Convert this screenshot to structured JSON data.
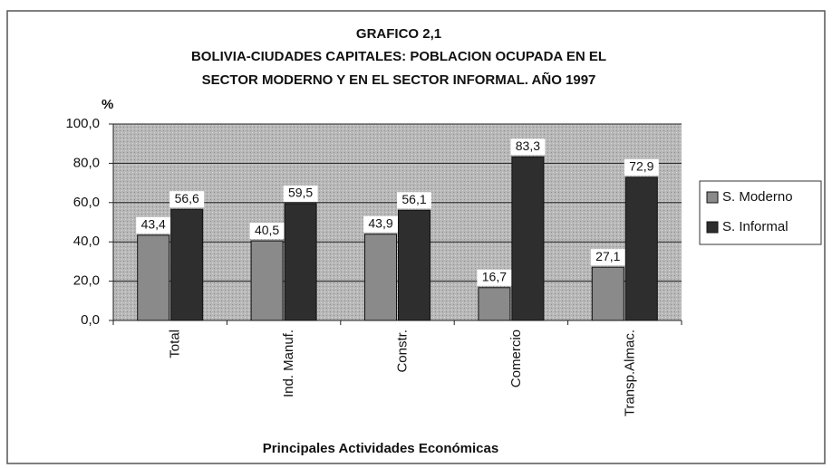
{
  "chart_data": {
    "type": "bar",
    "title": [
      "GRAFICO 2,1",
      "BOLIVIA-CIUDADES CAPITALES: POBLACION OCUPADA EN EL",
      "SECTOR MODERNO Y EN EL SECTOR INFORMAL. AÑO 1997"
    ],
    "y_label": "%",
    "x_label": "Principales Actividades Económicas",
    "categories": [
      "Total",
      "Ind. Manuf.",
      "Constr.",
      "Comercio",
      "Transp.Almac."
    ],
    "series": [
      {
        "name": "S. Moderno",
        "color": "#8a8a8a",
        "values": [
          43.4,
          40.5,
          43.9,
          16.7,
          27.1
        ],
        "value_labels": [
          "43,4",
          "40,5",
          "43,9",
          "16,7",
          "27,1"
        ]
      },
      {
        "name": "S. Informal",
        "color": "#2e2e2e",
        "values": [
          56.6,
          59.5,
          56.1,
          83.3,
          72.9
        ],
        "value_labels": [
          "56,6",
          "59,5",
          "56,1",
          "83,3",
          "72,9"
        ]
      }
    ],
    "ylim": [
      0,
      100
    ],
    "yticks": [
      {
        "value": 0,
        "label": "0,0"
      },
      {
        "value": 20,
        "label": "20,0"
      },
      {
        "value": 40,
        "label": "40,0"
      },
      {
        "value": 60,
        "label": "60,0"
      },
      {
        "value": 80,
        "label": "80,0"
      },
      {
        "value": 100,
        "label": "100,0"
      }
    ],
    "grid": true,
    "legend": "right"
  }
}
